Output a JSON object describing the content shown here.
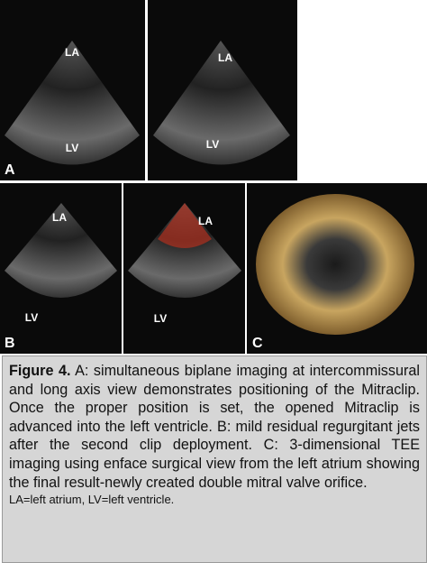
{
  "figure": {
    "panels": [
      {
        "letter": "A",
        "views": [
          [
            "LA",
            "LV"
          ],
          [
            "LA",
            "LV"
          ]
        ]
      },
      {
        "letter": "B",
        "views": [
          [
            "LA",
            "LV"
          ],
          [
            "LA",
            "LV"
          ]
        ]
      },
      {
        "letter": "C"
      }
    ],
    "caption": {
      "label": "Figure 4.",
      "text": " A: simultaneous biplane imaging at intercommissural and long axis view demonstrates positioning of the Mitraclip. Once the proper position is set, the opened Mitraclip is advanced into the left ventricle. B: mild residual regurgitant jets after the second clip deployment. C: 3-dimensional TEE imaging using enface surgical view from the left atrium showing the final result-newly created double mitral valve orifice."
    },
    "footnote": "LA=left atrium, LV=left ventricle."
  }
}
